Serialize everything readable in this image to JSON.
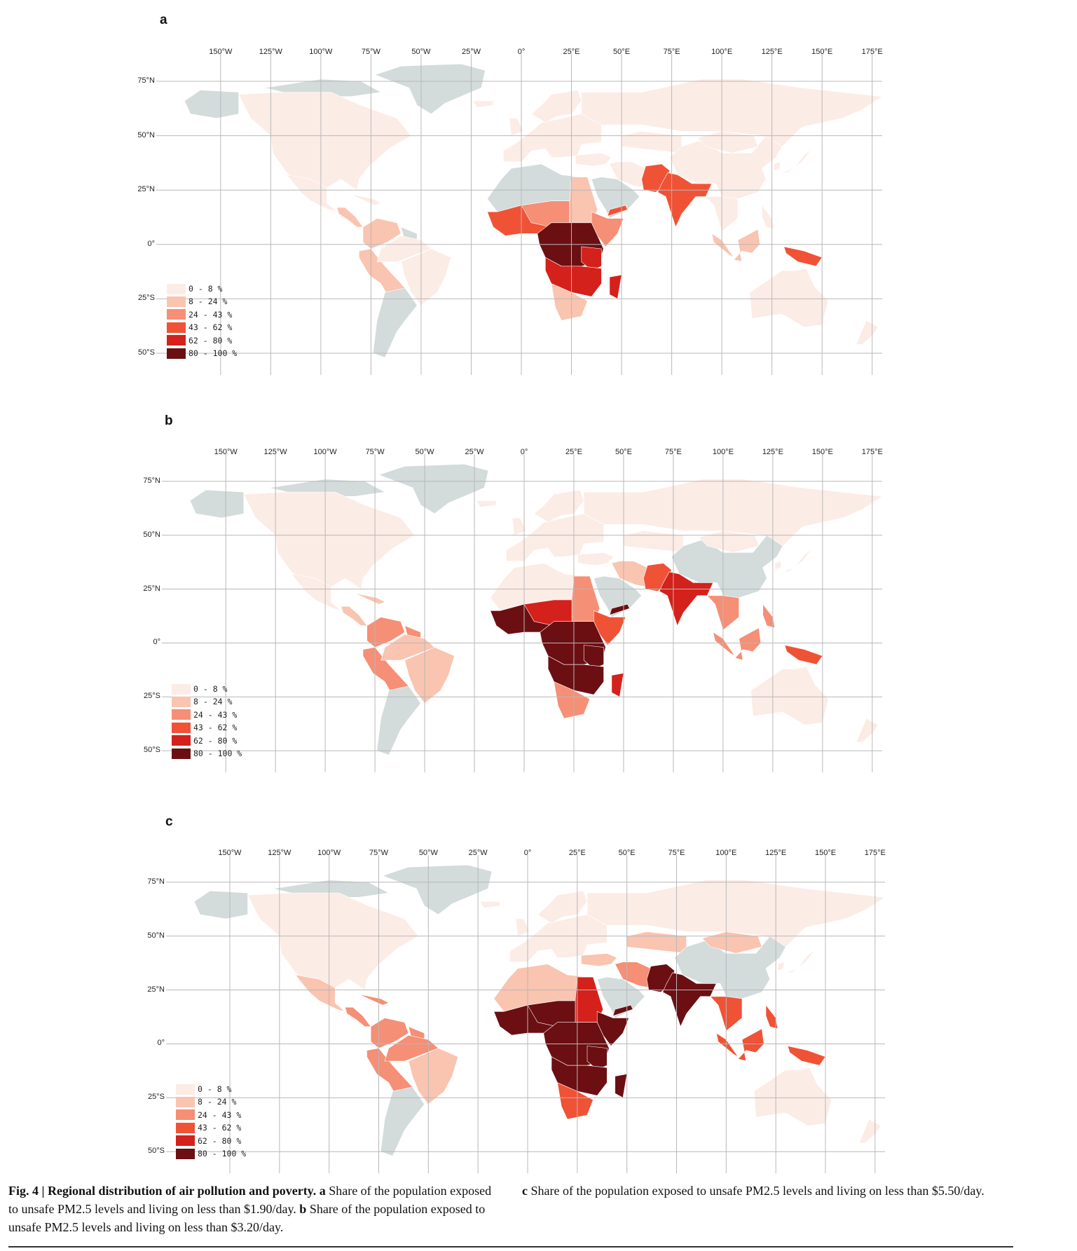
{
  "legend": {
    "classes": [
      {
        "label": "0 - 8 %",
        "color": "#fcece6"
      },
      {
        "label": "8 - 24 %",
        "color": "#f9c4b0"
      },
      {
        "label": "24 - 43 %",
        "color": "#f58f75"
      },
      {
        "label": "43 - 62 %",
        "color": "#f05236"
      },
      {
        "label": "62 - 80 %",
        "color": "#d4211b"
      },
      {
        "label": "80 - 100 %",
        "color": "#6b0f12"
      }
    ],
    "nodata_color": "#d3dbdb"
  },
  "axes": {
    "lon_ticks": [
      "150°W",
      "125°W",
      "100°W",
      "75°W",
      "50°W",
      "25°W",
      "0°",
      "25°E",
      "50°E",
      "75°E",
      "100°E",
      "125°E",
      "150°E",
      "175°E"
    ],
    "lat_ticks": [
      "75°N",
      "50°N",
      "25°N",
      "0°",
      "25°S",
      "50°S"
    ]
  },
  "panels": [
    {
      "letter": "a"
    },
    {
      "letter": "b"
    },
    {
      "letter": "c"
    }
  ],
  "caption": {
    "figure_label": "Fig. 4 | Regional distribution of air pollution and poverty.",
    "a_letter": "a",
    "a_text": " Share of the population exposed to unsafe PM2.5 levels and living on less than $1.90/day.",
    "b_letter": "b",
    "b_text": " Share of the population exposed to unsafe PM2.5 levels and living on less than $3.20/day.",
    "c_letter": "c",
    "c_text": " Share of the population exposed to unsafe PM2.5 levels and living on less than $5.50/day."
  }
}
